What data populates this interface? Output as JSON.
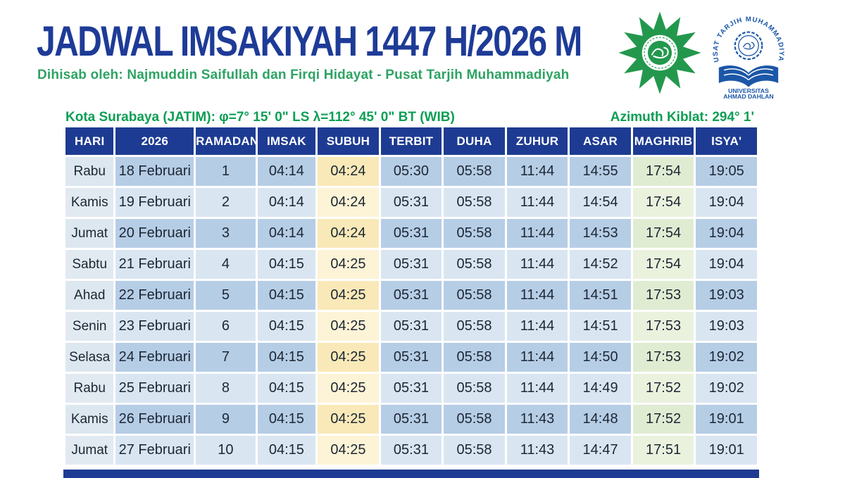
{
  "header": {
    "title": "JADWAL IMSAKIYAH 1447 H/2026 M",
    "subtitle": "Dihisab oleh: Najmuddin Saifullah dan Firqi Hidayat - Pusat Tarjih Muhammadiyah"
  },
  "logos": {
    "uad": {
      "arc_text": "PUSAT TARJIH MUHAMMADIYAH",
      "line1": "UNIVERSITAS",
      "line2": "AHMAD DAHLAN"
    }
  },
  "location": {
    "city_line": "Kota Surabaya (JATIM): φ=7° 15' 0\" LS λ=112° 45' 0\" BT (WIB)",
    "qibla": "Azimuth Kiblat: 294° 1'"
  },
  "colors": {
    "title_blue": "#1e3b97",
    "header_navy": "#1d3b92",
    "text_green": "#0c9e55",
    "row_odd_blue": "#b6cde6",
    "row_even_blue": "#d9e6f2",
    "hari_col": "#dde7ef",
    "subuh_odd": "#f9e9b8",
    "subuh_even": "#fdf3d6",
    "maghrib_odd": "#e0ecd2",
    "maghrib_even": "#eaf2de",
    "logo_green": "#23984d",
    "logo_blue": "#1c57a8"
  },
  "table": {
    "headers": [
      "HARI",
      "2026",
      "RAMADAN",
      "IMSAK",
      "SUBUH",
      "TERBIT",
      "DUHA",
      "ZUHUR",
      "ASAR",
      "MAGHRIB",
      "ISYA'"
    ],
    "rows": [
      [
        "Rabu",
        "18 Februari",
        "1",
        "04:14",
        "04:24",
        "05:30",
        "05:58",
        "11:44",
        "14:55",
        "17:54",
        "19:05"
      ],
      [
        "Kamis",
        "19 Februari",
        "2",
        "04:14",
        "04:24",
        "05:31",
        "05:58",
        "11:44",
        "14:54",
        "17:54",
        "19:04"
      ],
      [
        "Jumat",
        "20 Februari",
        "3",
        "04:14",
        "04:24",
        "05:31",
        "05:58",
        "11:44",
        "14:53",
        "17:54",
        "19:04"
      ],
      [
        "Sabtu",
        "21 Februari",
        "4",
        "04:15",
        "04:25",
        "05:31",
        "05:58",
        "11:44",
        "14:52",
        "17:54",
        "19:04"
      ],
      [
        "Ahad",
        "22 Februari",
        "5",
        "04:15",
        "04:25",
        "05:31",
        "05:58",
        "11:44",
        "14:51",
        "17:53",
        "19:03"
      ],
      [
        "Senin",
        "23 Februari",
        "6",
        "04:15",
        "04:25",
        "05:31",
        "05:58",
        "11:44",
        "14:51",
        "17:53",
        "19:03"
      ],
      [
        "Selasa",
        "24 Februari",
        "7",
        "04:15",
        "04:25",
        "05:31",
        "05:58",
        "11:44",
        "14:50",
        "17:53",
        "19:02"
      ],
      [
        "Rabu",
        "25 Februari",
        "8",
        "04:15",
        "04:25",
        "05:31",
        "05:58",
        "11:44",
        "14:49",
        "17:52",
        "19:02"
      ],
      [
        "Kamis",
        "26 Februari",
        "9",
        "04:15",
        "04:25",
        "05:31",
        "05:58",
        "11:43",
        "14:48",
        "17:52",
        "19:01"
      ],
      [
        "Jumat",
        "27 Februari",
        "10",
        "04:15",
        "04:25",
        "05:31",
        "05:58",
        "11:43",
        "14:47",
        "17:51",
        "19:01"
      ]
    ]
  }
}
